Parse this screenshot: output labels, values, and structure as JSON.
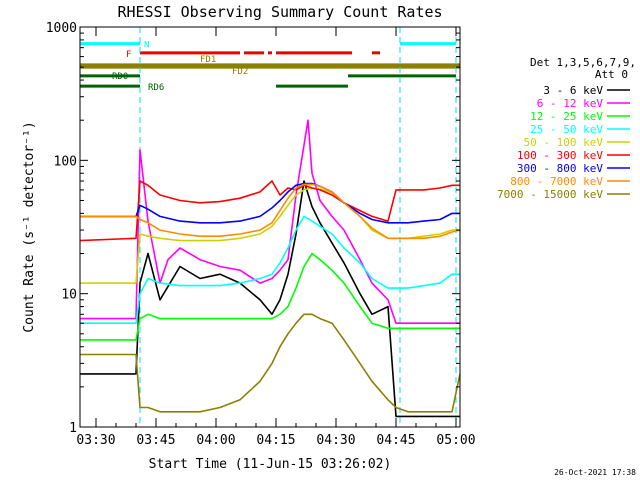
{
  "chart_data": {
    "type": "line",
    "title": "RHESSI Observing Summary Count Rates",
    "xlabel": "Start Time (11-Jun-15 03:26:02)",
    "ylabel": "Count Rate (s⁻¹ detector⁻¹)",
    "yscale": "log",
    "ylim": [
      1,
      1000
    ],
    "xlim_minutes_after_start": [
      0,
      95
    ],
    "x_ticks": [
      {
        "label": "03:30",
        "minutes": 4
      },
      {
        "label": "03:45",
        "minutes": 19
      },
      {
        "label": "04:00",
        "minutes": 34
      },
      {
        "label": "04:15",
        "minutes": 49
      },
      {
        "label": "04:30",
        "minutes": 64
      },
      {
        "label": "04:45",
        "minutes": 79
      },
      {
        "label": "05:00",
        "minutes": 94
      }
    ],
    "y_ticks": [
      {
        "label": "1",
        "value": 1
      },
      {
        "label": "10",
        "value": 10
      },
      {
        "label": "100",
        "value": 100
      },
      {
        "label": "1000",
        "value": 1000
      }
    ],
    "grid": false,
    "legend_placement": "right",
    "legend_header": [
      "Det 1,3,5,6,7,9,",
      "Att 0"
    ],
    "timestamp": "26-Oct-2021 17:38",
    "series": [
      {
        "name": "3 - 6 keV",
        "color": "#000000",
        "x": [
          0,
          14,
          15,
          17,
          20,
          25,
          30,
          35,
          40,
          45,
          48,
          50,
          52,
          54,
          56,
          58,
          60,
          63,
          66,
          70,
          73,
          77,
          79,
          82,
          86,
          90,
          93,
          95
        ],
        "y": [
          2.5,
          2.5,
          12,
          20,
          9,
          16,
          13,
          14,
          12,
          9,
          7,
          9,
          14,
          28,
          70,
          45,
          34,
          24,
          17,
          10,
          7,
          8,
          1.2,
          1.2,
          1.2,
          1.2,
          1.2,
          1.2
        ]
      },
      {
        "name": "6 - 12 keV",
        "color": "#ff00ff",
        "x": [
          0,
          14,
          15,
          17,
          20,
          22,
          25,
          30,
          35,
          40,
          45,
          48,
          50,
          52,
          54,
          56,
          57,
          58,
          60,
          63,
          66,
          70,
          73,
          77,
          79,
          82,
          86,
          90,
          93,
          95
        ],
        "y": [
          6.5,
          6.5,
          120,
          35,
          12,
          18,
          22,
          18,
          16,
          15,
          12,
          13,
          15,
          18,
          55,
          130,
          200,
          80,
          50,
          38,
          30,
          18,
          12,
          9,
          6,
          6,
          6,
          6,
          6,
          6
        ]
      },
      {
        "name": "12 - 25 keV",
        "color": "#00ff00",
        "x": [
          0,
          14,
          15,
          17,
          20,
          25,
          30,
          35,
          40,
          45,
          48,
          50,
          52,
          54,
          56,
          58,
          60,
          63,
          66,
          70,
          73,
          77,
          79,
          82,
          86,
          90,
          93,
          95
        ],
        "y": [
          4.5,
          4.5,
          6.5,
          7,
          6.5,
          6.5,
          6.5,
          6.5,
          6.5,
          6.5,
          6.5,
          7,
          8,
          11,
          16,
          20,
          18,
          15,
          12,
          8,
          6,
          5.5,
          5.5,
          5.5,
          5.5,
          5.5,
          5.5,
          5.5
        ]
      },
      {
        "name": "25 - 50 keV",
        "color": "#00ffff",
        "x": [
          0,
          14,
          15,
          17,
          20,
          25,
          30,
          35,
          40,
          45,
          48,
          50,
          52,
          54,
          56,
          58,
          60,
          63,
          66,
          70,
          73,
          77,
          79,
          82,
          86,
          90,
          93,
          95
        ],
        "y": [
          6,
          6,
          10,
          13,
          12,
          11.5,
          11.5,
          11.5,
          12,
          13,
          14,
          17,
          22,
          30,
          38,
          35,
          32,
          28,
          22,
          17,
          13,
          11,
          11,
          11,
          11.5,
          12,
          14,
          14
        ]
      },
      {
        "name": "50 - 100 keV",
        "color": "#d0d000",
        "x": [
          0,
          14,
          15,
          17,
          20,
          25,
          30,
          35,
          40,
          45,
          48,
          50,
          52,
          54,
          56,
          58,
          60,
          63,
          66,
          70,
          73,
          77,
          79,
          82,
          86,
          90,
          93,
          95
        ],
        "y": [
          12,
          12,
          28,
          27,
          26,
          25,
          25,
          25,
          26,
          28,
          32,
          38,
          46,
          55,
          60,
          62,
          61,
          57,
          48,
          38,
          30,
          26,
          26,
          26,
          27,
          28,
          30,
          30
        ]
      },
      {
        "name": "100 - 300 keV",
        "color": "#ff0000",
        "x": [
          0,
          14,
          15,
          17,
          20,
          25,
          30,
          35,
          40,
          45,
          48,
          50,
          52,
          54,
          56,
          58,
          60,
          63,
          66,
          70,
          73,
          77,
          79,
          82,
          86,
          90,
          93,
          95
        ],
        "y": [
          25,
          26,
          70,
          65,
          55,
          50,
          48,
          49,
          52,
          58,
          70,
          55,
          62,
          60,
          65,
          62,
          60,
          55,
          48,
          42,
          38,
          35,
          60,
          60,
          60,
          62,
          65,
          65
        ]
      },
      {
        "name": "300 - 800 keV",
        "color": "#0000ff",
        "x": [
          0,
          14,
          15,
          17,
          20,
          25,
          30,
          35,
          40,
          45,
          48,
          50,
          52,
          54,
          56,
          58,
          60,
          63,
          66,
          70,
          73,
          77,
          79,
          82,
          86,
          90,
          93,
          95
        ],
        "y": [
          38,
          38,
          46,
          43,
          38,
          35,
          34,
          34,
          35,
          38,
          44,
          50,
          58,
          65,
          67,
          67,
          64,
          58,
          48,
          40,
          36,
          34,
          34,
          34,
          35,
          36,
          40,
          40
        ]
      },
      {
        "name": "800 - 7000 keV",
        "color": "#ff8c00",
        "x": [
          0,
          14,
          15,
          17,
          20,
          25,
          30,
          35,
          40,
          45,
          48,
          50,
          52,
          54,
          56,
          58,
          60,
          63,
          66,
          70,
          73,
          77,
          79,
          82,
          86,
          90,
          93,
          95
        ],
        "y": [
          38,
          38,
          36,
          34,
          30,
          28,
          27,
          27,
          28,
          30,
          34,
          42,
          52,
          62,
          66,
          66,
          64,
          58,
          48,
          38,
          31,
          26,
          26,
          26,
          26,
          27,
          29,
          30
        ]
      },
      {
        "name": "7000 - 15000 keV",
        "color": "#8b8000",
        "x": [
          0,
          14,
          15,
          17,
          20,
          25,
          30,
          35,
          40,
          45,
          48,
          50,
          52,
          54,
          56,
          58,
          60,
          63,
          66,
          70,
          73,
          77,
          79,
          82,
          86,
          90,
          93,
          95
        ],
        "y": [
          3.5,
          3.5,
          1.4,
          1.4,
          1.3,
          1.3,
          1.3,
          1.4,
          1.6,
          2.2,
          3,
          4,
          5,
          6,
          7,
          7,
          6.5,
          6,
          4.5,
          3,
          2.2,
          1.6,
          1.4,
          1.3,
          1.3,
          1.3,
          1.3,
          2.5
        ]
      }
    ],
    "flags": [
      {
        "name": "N",
        "color": "#00ffff",
        "y_value": 750,
        "segments": [
          [
            0,
            15
          ],
          [
            80,
            94
          ]
        ]
      },
      {
        "name": "F",
        "color": "#ee0000",
        "y_value": 640,
        "segments": [
          [
            15,
            40
          ],
          [
            41,
            46
          ],
          [
            47,
            48
          ],
          [
            49,
            68
          ],
          [
            73,
            75
          ]
        ]
      },
      {
        "name": "FD1",
        "color": "#8b8000",
        "y_value": 520,
        "segments": [
          [
            0,
            95
          ]
        ]
      },
      {
        "name": "FD2",
        "color": "#8b8000",
        "y_value": 500,
        "segments": [
          [
            0,
            95
          ]
        ]
      },
      {
        "name": "RD0",
        "color": "#006400",
        "y_value": 430,
        "segments": [
          [
            0,
            15
          ],
          [
            67,
            94
          ]
        ]
      },
      {
        "name": "RD6",
        "color": "#006400",
        "y_value": 360,
        "segments": [
          [
            0,
            15
          ],
          [
            49,
            67
          ]
        ]
      }
    ],
    "vertical_markers_minutes": [
      0,
      15,
      80,
      94
    ]
  }
}
